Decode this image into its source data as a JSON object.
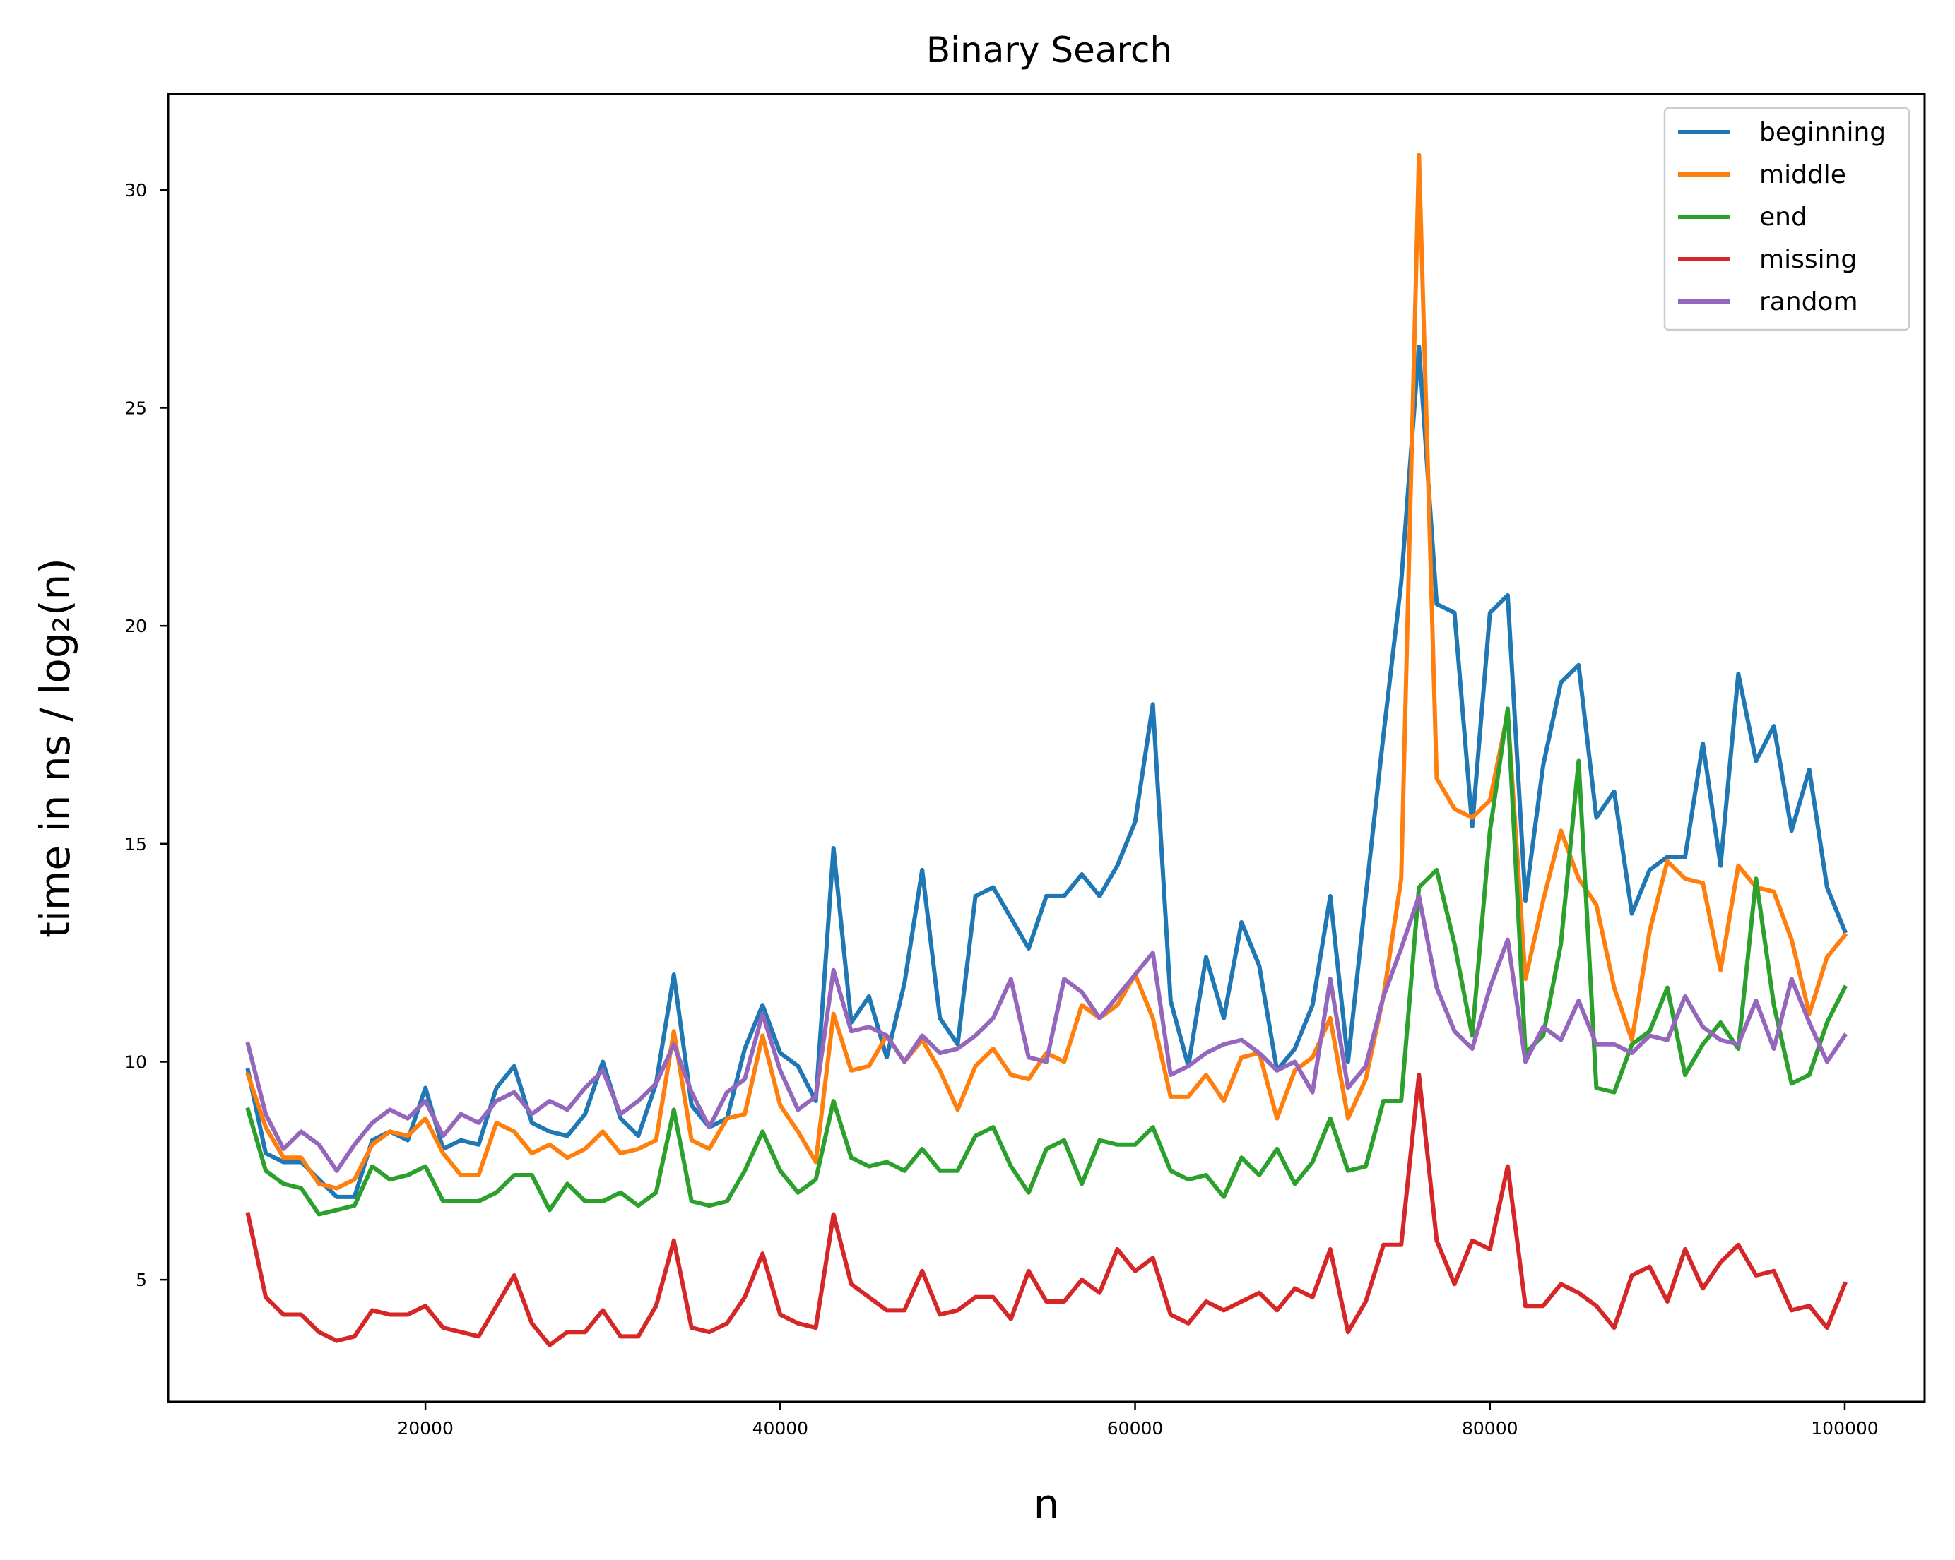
{
  "chart_data": {
    "type": "line",
    "title": "Binary Search",
    "xlabel": "n",
    "ylabel": "time in ns / log₂(n)",
    "xlim": [
      5500,
      104500
    ],
    "ylim": [
      2.2,
      32.2
    ],
    "xticks": [
      20000,
      40000,
      60000,
      80000,
      100000
    ],
    "yticks": [
      5,
      10,
      15,
      20,
      25,
      30
    ],
    "grid": false,
    "legend_position": "top-right",
    "x": [
      10000,
      11000,
      12000,
      13000,
      14000,
      15000,
      16000,
      17000,
      18000,
      19000,
      20000,
      21000,
      22000,
      23000,
      24000,
      25000,
      26000,
      27000,
      28000,
      29000,
      30000,
      31000,
      32000,
      33000,
      34000,
      35000,
      36000,
      37000,
      38000,
      39000,
      40000,
      41000,
      42000,
      43000,
      44000,
      45000,
      46000,
      47000,
      48000,
      49000,
      50000,
      51000,
      52000,
      53000,
      54000,
      55000,
      56000,
      57000,
      58000,
      59000,
      60000,
      61000,
      62000,
      63000,
      64000,
      65000,
      66000,
      67000,
      68000,
      69000,
      70000,
      71000,
      72000,
      73000,
      74000,
      75000,
      76000,
      77000,
      78000,
      79000,
      80000,
      81000,
      82000,
      83000,
      84000,
      85000,
      86000,
      87000,
      88000,
      89000,
      90000,
      91000,
      92000,
      93000,
      94000,
      95000,
      96000,
      97000,
      98000,
      99000,
      100000
    ],
    "series": [
      {
        "name": "beginning",
        "color": "#1f77b4",
        "values": [
          9.8,
          7.9,
          7.7,
          7.7,
          7.3,
          6.9,
          6.9,
          8.2,
          8.4,
          8.2,
          9.4,
          8.0,
          8.2,
          8.1,
          9.4,
          9.9,
          8.6,
          8.4,
          8.3,
          8.8,
          10.0,
          8.7,
          8.3,
          9.5,
          12.0,
          9.0,
          8.5,
          8.7,
          10.3,
          11.3,
          10.2,
          9.9,
          9.1,
          14.9,
          10.9,
          11.5,
          10.1,
          11.8,
          14.4,
          11.0,
          10.4,
          13.8,
          14.0,
          13.3,
          12.6,
          13.8,
          13.8,
          14.3,
          13.8,
          14.5,
          15.5,
          18.2,
          11.4,
          9.9,
          12.4,
          11.0,
          13.2,
          12.2,
          9.8,
          10.3,
          11.3,
          13.8,
          10.0,
          13.8,
          17.5,
          21.0,
          26.4,
          20.5,
          20.3,
          15.4,
          20.3,
          20.7,
          13.7,
          16.8,
          18.7,
          19.1,
          15.6,
          16.2,
          13.4,
          14.4,
          14.7,
          14.7,
          17.3,
          14.5,
          18.9,
          16.9,
          17.7,
          15.3,
          16.7,
          14.0,
          13.0
        ]
      },
      {
        "name": "middle",
        "color": "#ff7f0e",
        "values": [
          9.7,
          8.5,
          7.8,
          7.8,
          7.2,
          7.1,
          7.3,
          8.1,
          8.4,
          8.3,
          8.7,
          7.9,
          7.4,
          7.4,
          8.6,
          8.4,
          7.9,
          8.1,
          7.8,
          8.0,
          8.4,
          7.9,
          8.0,
          8.2,
          10.7,
          8.2,
          8.0,
          8.7,
          8.8,
          10.6,
          9.0,
          8.4,
          7.7,
          11.1,
          9.8,
          9.9,
          10.6,
          10.0,
          10.5,
          9.8,
          8.9,
          9.9,
          10.3,
          9.7,
          9.6,
          10.2,
          10.0,
          11.3,
          11.0,
          11.3,
          12.0,
          11.0,
          9.2,
          9.2,
          9.7,
          9.1,
          10.1,
          10.2,
          8.7,
          9.8,
          10.1,
          11.0,
          8.7,
          9.6,
          11.5,
          14.2,
          30.8,
          16.5,
          15.8,
          15.6,
          16.0,
          18.0,
          11.9,
          13.7,
          15.3,
          14.2,
          13.6,
          11.7,
          10.5,
          13.0,
          14.6,
          14.2,
          14.1,
          12.1,
          14.5,
          14.0,
          13.9,
          12.8,
          11.1,
          12.4,
          12.9
        ]
      },
      {
        "name": "end",
        "color": "#2ca02c",
        "values": [
          8.9,
          7.5,
          7.2,
          7.1,
          6.5,
          6.6,
          6.7,
          7.6,
          7.3,
          7.4,
          7.6,
          6.8,
          6.8,
          6.8,
          7.0,
          7.4,
          7.4,
          6.6,
          7.2,
          6.8,
          6.8,
          7.0,
          6.7,
          7.0,
          8.9,
          6.8,
          6.7,
          6.8,
          7.5,
          8.4,
          7.5,
          7.0,
          7.3,
          9.1,
          7.8,
          7.6,
          7.7,
          7.5,
          8.0,
          7.5,
          7.5,
          8.3,
          8.5,
          7.6,
          7.0,
          8.0,
          8.2,
          7.2,
          8.2,
          8.1,
          8.1,
          8.5,
          7.5,
          7.3,
          7.4,
          6.9,
          7.8,
          7.4,
          8.0,
          7.2,
          7.7,
          8.7,
          7.5,
          7.6,
          9.1,
          9.1,
          14.0,
          14.4,
          12.7,
          10.6,
          15.3,
          18.1,
          10.2,
          10.6,
          12.7,
          16.9,
          9.4,
          9.3,
          10.4,
          10.7,
          11.7,
          9.7,
          10.4,
          10.9,
          10.3,
          14.2,
          11.3,
          9.5,
          9.7,
          10.9,
          11.7
        ]
      },
      {
        "name": "missing",
        "color": "#d62728",
        "values": [
          6.5,
          4.6,
          4.2,
          4.2,
          3.8,
          3.6,
          3.7,
          4.3,
          4.2,
          4.2,
          4.4,
          3.9,
          3.8,
          3.7,
          4.4,
          5.1,
          4.0,
          3.5,
          3.8,
          3.8,
          4.3,
          3.7,
          3.7,
          4.4,
          5.9,
          3.9,
          3.8,
          4.0,
          4.6,
          5.6,
          4.2,
          4.0,
          3.9,
          6.5,
          4.9,
          4.6,
          4.3,
          4.3,
          5.2,
          4.2,
          4.3,
          4.6,
          4.6,
          4.1,
          5.2,
          4.5,
          4.5,
          5.0,
          4.7,
          5.7,
          5.2,
          5.5,
          4.2,
          4.0,
          4.5,
          4.3,
          4.5,
          4.7,
          4.3,
          4.8,
          4.6,
          5.7,
          3.8,
          4.5,
          5.8,
          5.8,
          9.7,
          5.9,
          4.9,
          5.9,
          5.7,
          7.6,
          4.4,
          4.4,
          4.9,
          4.7,
          4.4,
          3.9,
          5.1,
          5.3,
          4.5,
          5.7,
          4.8,
          5.4,
          5.8,
          5.1,
          5.2,
          4.3,
          4.4,
          3.9,
          4.9
        ]
      },
      {
        "name": "random",
        "color": "#9467bd",
        "values": [
          10.4,
          8.8,
          8.0,
          8.4,
          8.1,
          7.5,
          8.1,
          8.6,
          8.9,
          8.7,
          9.1,
          8.3,
          8.8,
          8.6,
          9.1,
          9.3,
          8.8,
          9.1,
          8.9,
          9.4,
          9.8,
          8.8,
          9.1,
          9.5,
          10.4,
          9.3,
          8.5,
          9.3,
          9.6,
          11.1,
          9.8,
          8.9,
          9.2,
          12.1,
          10.7,
          10.8,
          10.6,
          10.0,
          10.6,
          10.2,
          10.3,
          10.6,
          11.0,
          11.9,
          10.1,
          10.0,
          11.9,
          11.6,
          11.0,
          11.5,
          12.0,
          12.5,
          9.7,
          9.9,
          10.2,
          10.4,
          10.5,
          10.2,
          9.8,
          10.0,
          9.3,
          11.9,
          9.4,
          9.9,
          11.5,
          12.6,
          13.8,
          11.7,
          10.7,
          10.3,
          11.7,
          12.8,
          10.0,
          10.8,
          10.5,
          11.4,
          10.4,
          10.4,
          10.2,
          10.6,
          10.5,
          11.5,
          10.8,
          10.5,
          10.4,
          11.4,
          10.3,
          11.9,
          10.9,
          10.0,
          10.6
        ]
      }
    ]
  }
}
